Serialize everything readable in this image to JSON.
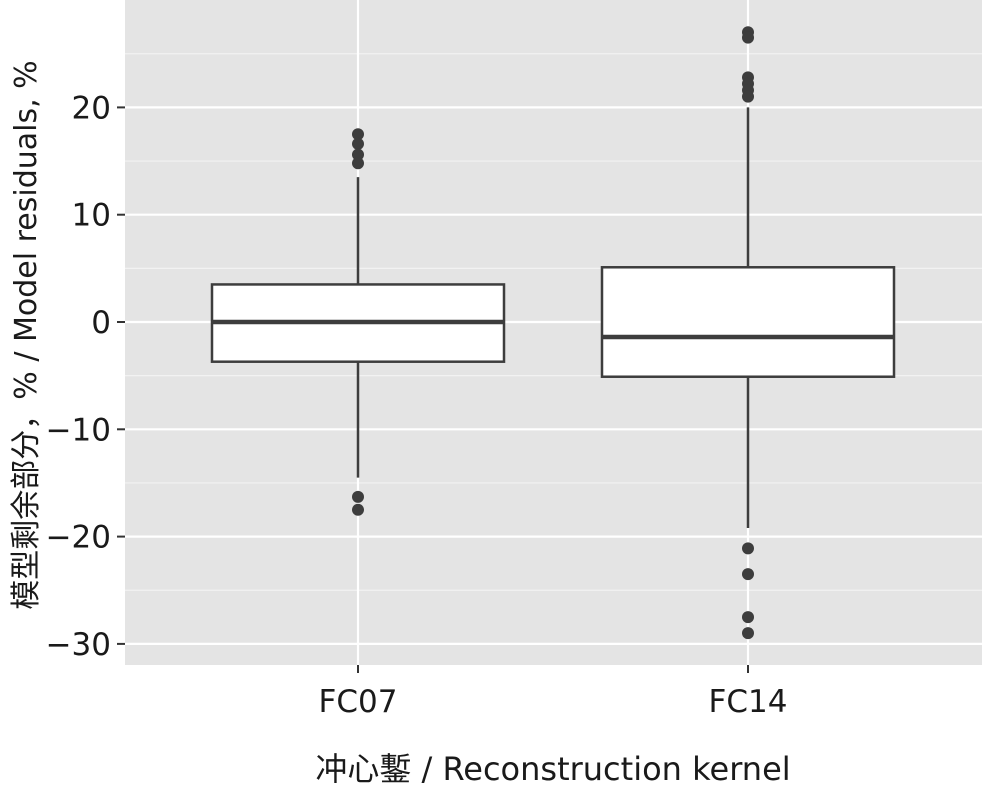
{
  "chart_data": {
    "type": "boxplot",
    "xlabel": "冲心鏨 / Reconstruction kernel",
    "ylabel": "模型剩余部分，% / Model residuals, %",
    "ylim": [
      -32,
      30
    ],
    "y_ticks": [
      20,
      10,
      0,
      -10,
      -20,
      -30
    ],
    "y_tick_labels": [
      "20",
      "10",
      "0",
      "−10",
      "−20",
      "−30"
    ],
    "grid": true,
    "categories": [
      "FC07",
      "FC14"
    ],
    "boxes": [
      {
        "category": "FC07",
        "whisker_low": -14.5,
        "q1": -3.7,
        "median": 0.0,
        "q3": 3.5,
        "whisker_high": 13.5,
        "outliers": [
          17.5,
          16.6,
          15.6,
          14.8,
          -16.3,
          -17.5
        ]
      },
      {
        "category": "FC14",
        "whisker_low": -19.2,
        "q1": -5.1,
        "median": -1.4,
        "q3": 5.1,
        "whisker_high": 20.0,
        "outliers": [
          27.0,
          26.5,
          22.8,
          22.2,
          21.6,
          21.0,
          -21.1,
          -23.5,
          -27.5,
          -29.0
        ]
      }
    ],
    "colors": {
      "panel": "#e4e4e4",
      "grid_major": "#ffffff",
      "grid_minor": "#f2f2f2",
      "box_fill": "#ffffff",
      "box_stroke": "#3d3d3d",
      "outlier": "#3d3d3d"
    }
  }
}
